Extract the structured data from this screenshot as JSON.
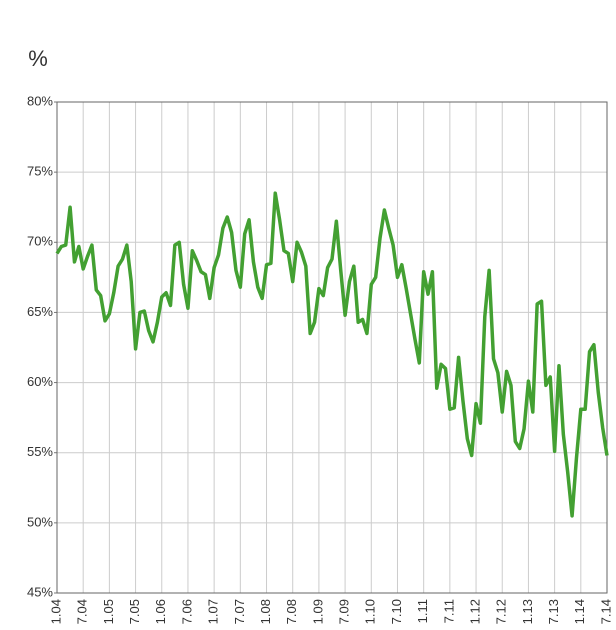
{
  "chart_data": {
    "type": "line",
    "ylabel": "%",
    "categories": [
      "1.04",
      null,
      null,
      null,
      null,
      null,
      "7.04",
      null,
      null,
      null,
      null,
      null,
      "1.05",
      null,
      null,
      null,
      null,
      null,
      "7.05",
      null,
      null,
      null,
      null,
      null,
      "1.06",
      null,
      null,
      null,
      null,
      null,
      "7.06",
      null,
      null,
      null,
      null,
      null,
      "1.07",
      null,
      null,
      null,
      null,
      null,
      "7.07",
      null,
      null,
      null,
      null,
      null,
      "1.08",
      null,
      null,
      null,
      null,
      null,
      "7.08",
      null,
      null,
      null,
      null,
      null,
      "1.09",
      null,
      null,
      null,
      null,
      null,
      "7.09",
      null,
      null,
      null,
      null,
      null,
      "1.10",
      null,
      null,
      null,
      null,
      null,
      "7.10",
      null,
      null,
      null,
      null,
      null,
      "1.11",
      null,
      null,
      null,
      null,
      null,
      "7.11",
      null,
      null,
      null,
      null,
      null,
      "1.12",
      null,
      null,
      null,
      null,
      null,
      "7.12",
      null,
      null,
      null,
      null,
      null,
      "1.13",
      null,
      null,
      null,
      null,
      null,
      "7.13",
      null,
      null,
      null,
      null,
      null,
      "1.14",
      null,
      null,
      null,
      null,
      null,
      "7.14"
    ],
    "values": [
      69.2,
      69.7,
      69.8,
      72.5,
      68.6,
      69.7,
      68.1,
      69.0,
      69.8,
      66.6,
      66.2,
      64.4,
      64.9,
      66.4,
      68.3,
      68.8,
      69.8,
      67.2,
      62.4,
      65.0,
      65.1,
      63.7,
      62.9,
      64.3,
      66.1,
      66.4,
      65.5,
      69.8,
      70.0,
      67.0,
      65.3,
      69.4,
      68.7,
      67.9,
      67.7,
      66.0,
      68.2,
      69.1,
      71.0,
      71.8,
      70.7,
      68.0,
      66.8,
      70.6,
      71.6,
      68.6,
      66.8,
      66.0,
      68.4,
      68.5,
      73.5,
      71.6,
      69.4,
      69.2,
      67.2,
      70.0,
      69.3,
      68.3,
      63.5,
      64.3,
      66.7,
      66.2,
      68.2,
      68.8,
      71.5,
      68.0,
      64.8,
      67.2,
      68.3,
      64.3,
      64.5,
      63.5,
      67.0,
      67.5,
      70.3,
      72.3,
      71.0,
      69.8,
      67.5,
      68.4,
      66.7,
      64.9,
      63.1,
      61.4,
      67.9,
      66.3,
      67.9,
      59.6,
      61.3,
      61.0,
      58.1,
      58.2,
      61.8,
      58.7,
      56.0,
      54.8,
      58.5,
      57.1,
      64.7,
      68.0,
      61.7,
      60.7,
      57.9,
      60.8,
      59.8,
      55.8,
      55.3,
      56.7,
      60.1,
      57.9,
      65.6,
      65.8,
      59.8,
      60.4,
      55.1,
      61.2,
      56.3,
      53.6,
      50.5,
      54.6,
      58.1,
      58.1,
      62.2,
      62.7,
      59.3,
      56.8,
      54.8
    ],
    "color": "#43a032",
    "ylim": [
      45,
      80
    ],
    "yticks": [
      {
        "value": 45,
        "label": "45%"
      },
      {
        "value": 50,
        "label": "50%"
      },
      {
        "value": 55,
        "label": "55%"
      },
      {
        "value": 60,
        "label": "60%"
      },
      {
        "value": 65,
        "label": "65%"
      },
      {
        "value": 70,
        "label": "70%"
      },
      {
        "value": 75,
        "label": "75%"
      },
      {
        "value": 80,
        "label": "80%"
      }
    ],
    "grid": true
  }
}
